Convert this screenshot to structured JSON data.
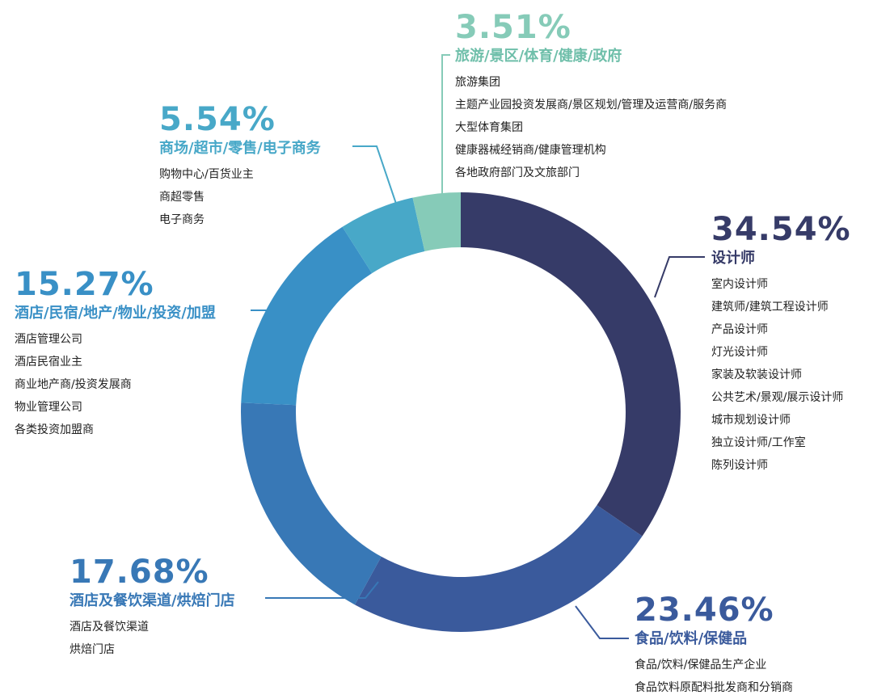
{
  "chart_data": {
    "type": "pie",
    "donut": true,
    "slices": [
      {
        "percent": "34.54%",
        "value": 34.54,
        "color": "#363b68",
        "category": "设计师",
        "items": [
          "室内设计师",
          "建筑师/建筑工程设计师",
          "产品设计师",
          "灯光设计师",
          "家装及软装设计师",
          "公共艺术/景观/展示设计师",
          "城市规划设计师",
          "独立设计师/工作室",
          "陈列设计师"
        ]
      },
      {
        "percent": "23.46%",
        "value": 23.46,
        "color": "#3a5a9c",
        "category": "食品/饮料/保健品",
        "items": [
          "食品/饮料/保健品生产企业",
          "食品饮料原配料批发商和分销商"
        ]
      },
      {
        "percent": "17.68%",
        "value": 17.68,
        "color": "#3878b6",
        "category": "酒店及餐饮渠道/烘焙门店",
        "items": [
          "酒店及餐饮渠道",
          "烘焙门店"
        ]
      },
      {
        "percent": "15.27%",
        "value": 15.27,
        "color": "#3990c6",
        "category": "酒店/民宿/地产/物业/投资/加盟",
        "items": [
          "酒店管理公司",
          "酒店民宿业主",
          "商业地产商/投资发展商",
          "物业管理公司",
          "各类投资加盟商"
        ]
      },
      {
        "percent": "5.54%",
        "value": 5.54,
        "color": "#48a8c8",
        "category": "商场/超市/零售/电子商务",
        "items": [
          "购物中心/百货业主",
          "商超零售",
          "电子商务"
        ]
      },
      {
        "percent": "3.51%",
        "value": 3.51,
        "color": "#86cbb8",
        "category": "旅游/景区/体育/健康/政府",
        "items": [
          "旅游集团",
          "主题产业园投资发展商/景区规划/管理及运营商/服务商",
          "大型体育集团",
          "健康器械经销商/健康管理机构",
          "各地政府部门及文旅部门"
        ]
      }
    ]
  }
}
